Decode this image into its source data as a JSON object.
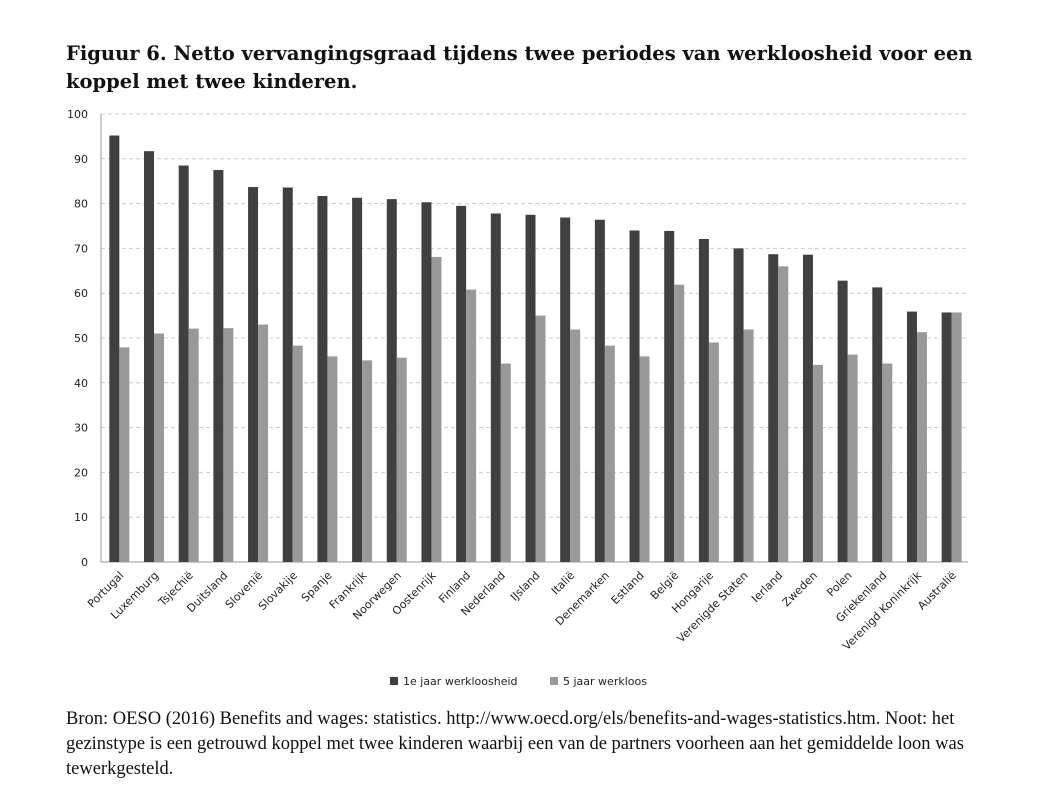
{
  "title": "Figuur 6. Netto vervangingsgraad tijdens twee periodes van werkloosheid voor een koppel met twee kinderen.",
  "note": "Bron: OESO (2016) Benefits and wages: statistics. http://www.oecd.org/els/benefits-and-wages-statistics.htm. Noot: het gezinstype is een getrouwd koppel met twee kinderen waarbij een van de partners voorheen aan het gemiddelde loon was tewerkgesteld.",
  "chart_data": {
    "type": "bar",
    "title": "",
    "xlabel": "",
    "ylabel": "",
    "ylim": [
      0,
      100
    ],
    "yticks": [
      0,
      10,
      20,
      30,
      40,
      50,
      60,
      70,
      80,
      90,
      100
    ],
    "grid": true,
    "legend": "bottom",
    "categories": [
      "Portugal",
      "Luxemburg",
      "Tsjechië",
      "Duitsland",
      "Slovenië",
      "Slovakije",
      "Spanje",
      "Frankrijk",
      "Noorwegen",
      "Oostenrijk",
      "Finland",
      "Nederland",
      "IJsland",
      "Italië",
      "Denemarken",
      "Estland",
      "België",
      "Hongarije",
      "Verenigde Staten",
      "Ierland",
      "Zweden",
      "Polen",
      "Griekenland",
      "Verenigd Koninkrijk",
      "Australië"
    ],
    "series": [
      {
        "name": "1e jaar werkloosheid",
        "color": "#404040",
        "values": [
          95.2,
          91.7,
          88.5,
          87.5,
          83.7,
          83.6,
          81.7,
          81.3,
          81.0,
          80.3,
          79.5,
          77.8,
          77.5,
          76.9,
          76.4,
          74.0,
          73.9,
          72.1,
          70.0,
          68.7,
          68.6,
          62.8,
          61.3,
          55.9,
          55.7
        ]
      },
      {
        "name": "5 jaar werkloos",
        "color": "#999999",
        "values": [
          47.9,
          51.0,
          52.1,
          52.2,
          53.0,
          48.3,
          45.9,
          45.0,
          45.6,
          68.1,
          60.8,
          44.3,
          55.0,
          51.9,
          48.3,
          45.9,
          61.9,
          49.0,
          51.9,
          66.0,
          44.0,
          46.3,
          44.3,
          51.3,
          55.7
        ]
      }
    ]
  }
}
